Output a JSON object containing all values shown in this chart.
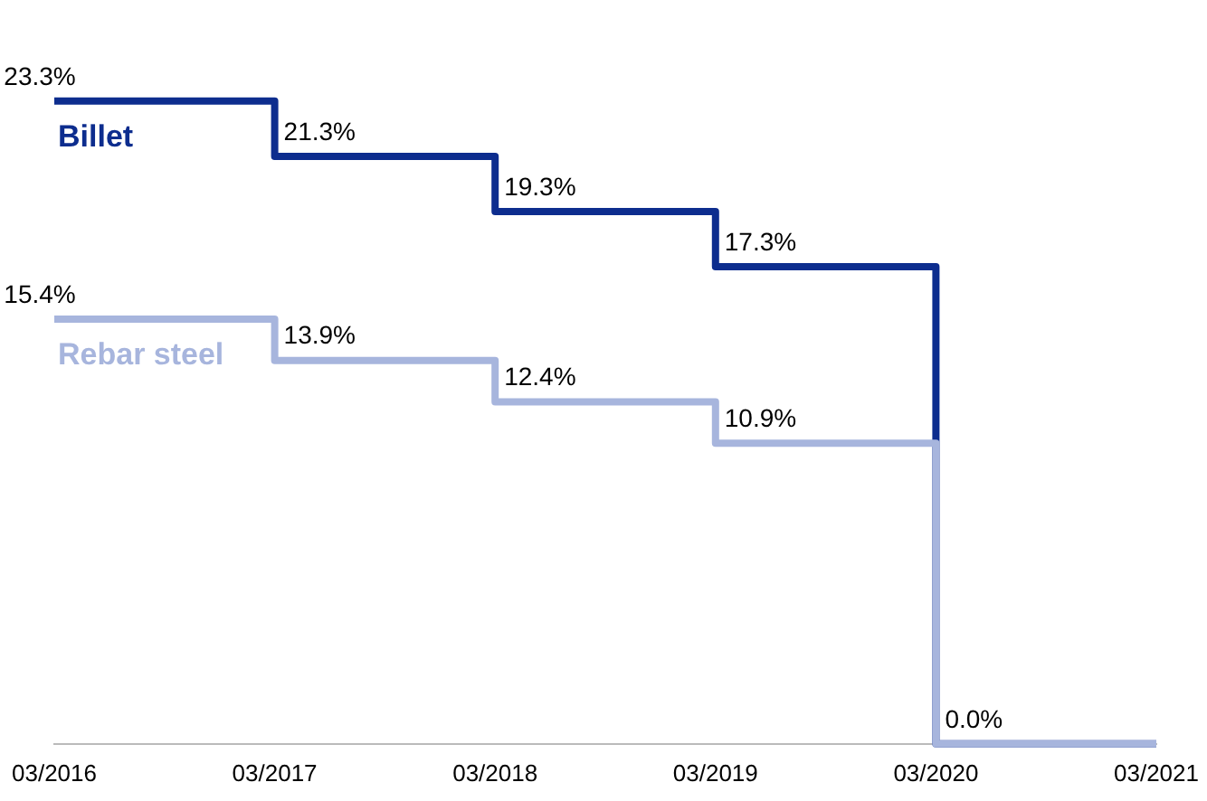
{
  "chart_data": {
    "type": "step",
    "categories": [
      "03/2016",
      "03/2017",
      "03/2018",
      "03/2019",
      "03/2020",
      "03/2021"
    ],
    "series": [
      {
        "name": "Billet",
        "color": "#0d2d8e",
        "values": [
          23.3,
          21.3,
          19.3,
          17.3,
          0,
          0
        ],
        "value_labels": [
          "23.3%",
          "21.3%",
          "19.3%",
          "17.3%",
          null,
          null
        ]
      },
      {
        "name": "Rebar steel",
        "color": "#a7b5dd",
        "values": [
          15.4,
          13.9,
          12.4,
          10.9,
          0,
          0
        ],
        "value_labels": [
          "15.4%",
          "13.9%",
          "12.4%",
          "10.9%",
          "0.0%",
          null
        ]
      }
    ],
    "grid": false,
    "legend": false,
    "tick_labels": "x",
    "marker": "none",
    "line_style": "solid"
  }
}
